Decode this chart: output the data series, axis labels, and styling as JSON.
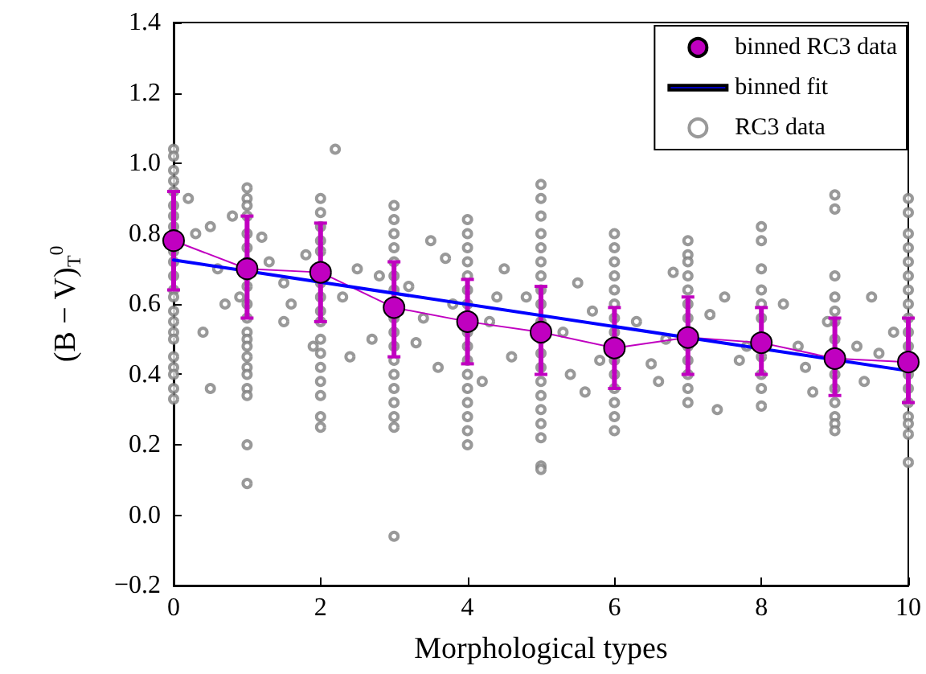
{
  "chart_data": {
    "type": "line",
    "xlabel": "Morphological types",
    "ylabel": "(B − V)$_{T}$$^{0}$",
    "xlim": [
      0,
      10
    ],
    "xticks": [
      0,
      2,
      4,
      6,
      8,
      10
    ],
    "ylim": [
      -0.2,
      1.4
    ],
    "yticks": [
      {
        "value": -0.2,
        "label": "−0.2"
      },
      {
        "value": 0,
        "label": "0.0"
      },
      {
        "value": 0.2,
        "label": "0.2"
      },
      {
        "value": 0.4,
        "label": "0.4"
      },
      {
        "value": 0.6,
        "label": "0.6"
      },
      {
        "value": 0.8,
        "label": "0.8"
      },
      {
        "value": 1.0,
        "label": "1.0"
      },
      {
        "value": 1.2,
        "label": "1.2"
      },
      {
        "value": 1.4,
        "label": "1.4"
      }
    ],
    "grid": false,
    "legend": "top right",
    "series": [
      {
        "name": "binned RC3 data",
        "marker": "circle",
        "line_style": "solid",
        "color": "#c000c0",
        "x": [
          0,
          1,
          2,
          3,
          4,
          5,
          6,
          7,
          8,
          9,
          10
        ],
        "values": [
          0.78,
          0.7,
          0.69,
          0.59,
          0.55,
          0.52,
          0.475,
          0.505,
          0.49,
          0.445,
          0.435
        ],
        "errors": [
          [
            0.64,
            0.92
          ],
          [
            0.56,
            0.85
          ],
          [
            0.55,
            0.83
          ],
          [
            0.45,
            0.72
          ],
          [
            0.43,
            0.67
          ],
          [
            0.4,
            0.65
          ],
          [
            0.36,
            0.59
          ],
          [
            0.4,
            0.62
          ],
          [
            0.4,
            0.59
          ],
          [
            0.34,
            0.56
          ],
          [
            0.32,
            0.56
          ]
        ]
      },
      {
        "name": "binned fit",
        "marker": "none",
        "line_style": "solid",
        "color": "#0000ff",
        "x": [
          0,
          10
        ],
        "values": [
          0.725,
          0.41
        ]
      },
      {
        "name": "RC3 data",
        "type": "scatter",
        "marker": "circle",
        "color": "#808080",
        "x": [
          0,
          0,
          0,
          0,
          0,
          0,
          0,
          0,
          0,
          0,
          0,
          0,
          0,
          0,
          0,
          0,
          0,
          0,
          0,
          0,
          0,
          0,
          0,
          1,
          1,
          1,
          1,
          1,
          1,
          1,
          1,
          1,
          1,
          1,
          1,
          1,
          1,
          1,
          1,
          1,
          1,
          1,
          1,
          1,
          2,
          2,
          2,
          2,
          2,
          2,
          2,
          2,
          2,
          2,
          2,
          2,
          2,
          2,
          2,
          2,
          3,
          3,
          3,
          3,
          3,
          3,
          3,
          3,
          3,
          3,
          3,
          3,
          3,
          3,
          3,
          3,
          3,
          4,
          4,
          4,
          4,
          4,
          4,
          4,
          4,
          4,
          4,
          4,
          4,
          4,
          4,
          4,
          4,
          5,
          5,
          5,
          5,
          5,
          5,
          5,
          5,
          5,
          5,
          5,
          5,
          5,
          5,
          5,
          5,
          5,
          5,
          5,
          5,
          6,
          6,
          6,
          6,
          6,
          6,
          6,
          6,
          6,
          6,
          6,
          6,
          6,
          6,
          7,
          7,
          7,
          7,
          7,
          7,
          7,
          7,
          7,
          7,
          7,
          7,
          8,
          8,
          8,
          8,
          8,
          8,
          8,
          8,
          8,
          8,
          9,
          9,
          9,
          9,
          9,
          9,
          9,
          9,
          9,
          9,
          9,
          9,
          9,
          10,
          10,
          10,
          10,
          10,
          10,
          10,
          10,
          10,
          10,
          10,
          10,
          10,
          10,
          10,
          10,
          10,
          10,
          0.3,
          0.5,
          0.6,
          0.7,
          0.4,
          0.9,
          1.3,
          1.5,
          1.6,
          1.8,
          1.9,
          1.5,
          2.3,
          2.5,
          2.4,
          2.7,
          2.8,
          3.2,
          3.4,
          3.5,
          3.6,
          3.8,
          3.3,
          3.7,
          4.3,
          4.5,
          4.6,
          4.2,
          4.8,
          4.4,
          5.3,
          5.5,
          5.4,
          5.7,
          5.8,
          5.6,
          6.3,
          6.5,
          6.7,
          6.8,
          6.6,
          7.3,
          7.5,
          7.7,
          7.8,
          7.4,
          8.3,
          8.5,
          8.6,
          8.7,
          8.9,
          9.3,
          9.5,
          9.6,
          9.4,
          9.8,
          2.2,
          0.2,
          0.8,
          1.2,
          0.5
        ],
        "values": [
          1.04,
          1.02,
          0.98,
          0.95,
          0.92,
          0.88,
          0.85,
          0.82,
          0.8,
          0.75,
          0.72,
          0.68,
          0.64,
          0.62,
          0.58,
          0.55,
          0.52,
          0.5,
          0.45,
          0.42,
          0.4,
          0.36,
          0.33,
          0.93,
          0.9,
          0.88,
          0.85,
          0.8,
          0.76,
          0.72,
          0.68,
          0.65,
          0.6,
          0.56,
          0.52,
          0.5,
          0.48,
          0.45,
          0.42,
          0.4,
          0.36,
          0.34,
          0.2,
          0.09,
          0.9,
          0.86,
          0.82,
          0.78,
          0.75,
          0.66,
          0.62,
          0.58,
          0.55,
          0.5,
          0.46,
          0.42,
          0.38,
          0.34,
          0.28,
          0.25,
          0.88,
          0.84,
          0.8,
          0.76,
          0.72,
          0.68,
          0.64,
          0.56,
          0.52,
          0.48,
          0.44,
          0.4,
          0.36,
          0.32,
          0.28,
          0.25,
          -0.06,
          0.84,
          0.8,
          0.76,
          0.72,
          0.68,
          0.64,
          0.6,
          0.52,
          0.48,
          0.44,
          0.4,
          0.36,
          0.32,
          0.28,
          0.24,
          0.2,
          0.94,
          0.9,
          0.85,
          0.8,
          0.76,
          0.72,
          0.68,
          0.64,
          0.6,
          0.55,
          0.5,
          0.46,
          0.42,
          0.38,
          0.34,
          0.3,
          0.26,
          0.22,
          0.14,
          0.13,
          0.8,
          0.76,
          0.72,
          0.68,
          0.64,
          0.6,
          0.56,
          0.52,
          0.44,
          0.4,
          0.36,
          0.32,
          0.28,
          0.24,
          0.78,
          0.74,
          0.72,
          0.68,
          0.64,
          0.6,
          0.56,
          0.48,
          0.44,
          0.4,
          0.36,
          0.32,
          0.82,
          0.78,
          0.7,
          0.64,
          0.6,
          0.56,
          0.45,
          0.4,
          0.36,
          0.31,
          0.91,
          0.87,
          0.68,
          0.62,
          0.58,
          0.55,
          0.5,
          0.4,
          0.36,
          0.32,
          0.28,
          0.26,
          0.24,
          0.9,
          0.86,
          0.8,
          0.76,
          0.72,
          0.68,
          0.64,
          0.6,
          0.56,
          0.52,
          0.48,
          0.4,
          0.36,
          0.32,
          0.28,
          0.26,
          0.23,
          0.15,
          0.8,
          0.82,
          0.7,
          0.6,
          0.52,
          0.62,
          0.72,
          0.66,
          0.6,
          0.74,
          0.48,
          0.55,
          0.62,
          0.7,
          0.45,
          0.5,
          0.68,
          0.65,
          0.56,
          0.78,
          0.42,
          0.6,
          0.49,
          0.73,
          0.55,
          0.7,
          0.45,
          0.38,
          0.62,
          0.62,
          0.52,
          0.66,
          0.4,
          0.58,
          0.44,
          0.35,
          0.55,
          0.43,
          0.5,
          0.69,
          0.38,
          0.57,
          0.62,
          0.44,
          0.48,
          0.3,
          0.6,
          0.48,
          0.42,
          0.35,
          0.55,
          0.48,
          0.62,
          0.46,
          0.38,
          0.52,
          1.04,
          0.9,
          0.85,
          0.79,
          0.36
        ]
      }
    ]
  }
}
